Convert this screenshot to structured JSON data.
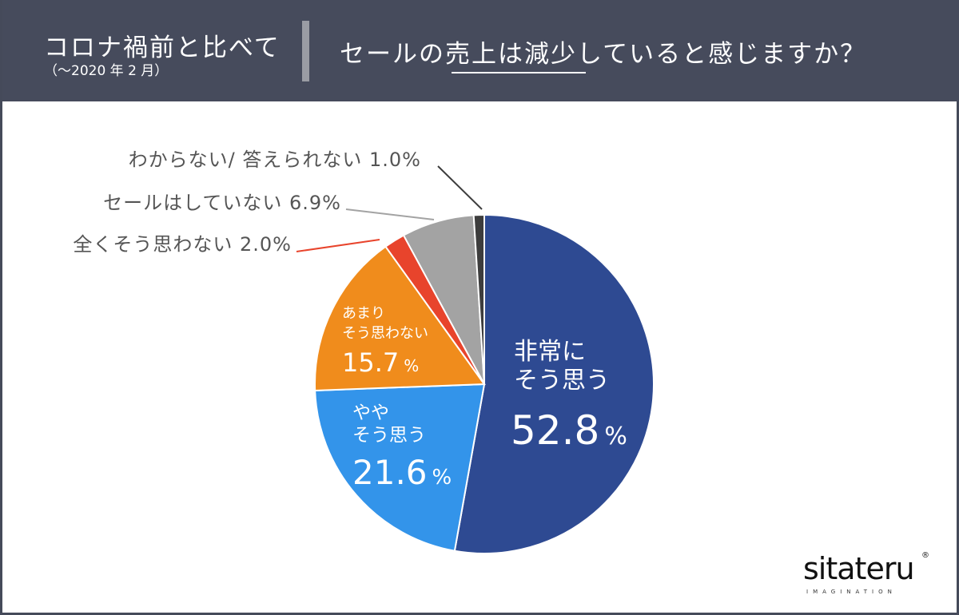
{
  "header": {
    "title": "コロナ禍前と比べて",
    "subtitle": "（〜2020 年 2 月）",
    "question": "セールの売上は減少していると感じますか？"
  },
  "logo": {
    "name": "sitateru",
    "tagline": "IMAGINATION",
    "mark": "®"
  },
  "colors": {
    "very_much": "#2e4a92",
    "somewhat": "#3394ea",
    "not_really": "#f08c1c",
    "not_at_all": "#e8442c",
    "no_sale": "#a3a3a3",
    "unknown": "#3d3d3d",
    "header_bg": "#464b5c"
  },
  "chart_data": {
    "type": "pie",
    "title": "セールの売上は減少していると感じますか？",
    "slices": [
      {
        "label_lines": [
          "非常に",
          "そう思う"
        ],
        "value": 52.8,
        "value_text": "52.8",
        "color_key": "very_much"
      },
      {
        "label_lines": [
          "やや",
          "そう思う"
        ],
        "value": 21.6,
        "value_text": "21.6",
        "color_key": "somewhat"
      },
      {
        "label_lines": [
          "あまり",
          "そう思わない"
        ],
        "value": 15.7,
        "value_text": "15.7",
        "color_key": "not_really"
      },
      {
        "label_lines": [
          "全くそう思わない"
        ],
        "value": 2.0,
        "value_text": "2.0",
        "color_key": "not_at_all"
      },
      {
        "label_lines": [
          "セールはしていない"
        ],
        "value": 6.9,
        "value_text": "6.9",
        "color_key": "no_sale"
      },
      {
        "label_lines": [
          "わからない/ 答えられない"
        ],
        "value": 1.0,
        "value_text": "1.0",
        "color_key": "unknown"
      }
    ],
    "percent_sign": "%"
  }
}
